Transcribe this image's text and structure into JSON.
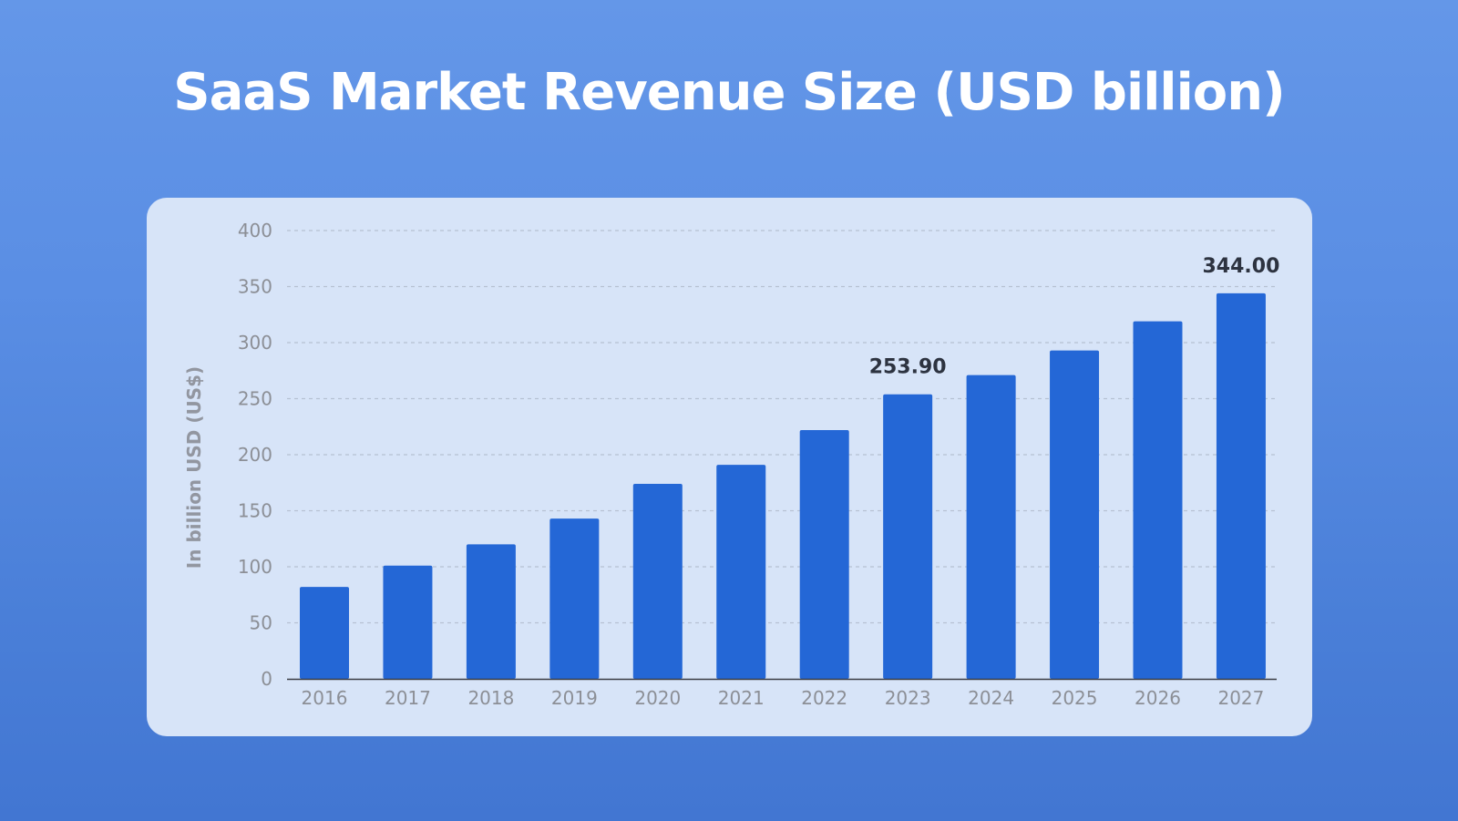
{
  "page": {
    "title": "SaaS Market Revenue Size (USD billion)"
  },
  "colors": {
    "bar": "#2467d6",
    "grid": "#b6c1d2",
    "axis": "#3a3d44",
    "panel": "#d7e4f8"
  },
  "chart_data": {
    "type": "bar",
    "title": "SaaS Market Revenue Size (USD billion)",
    "xlabel": "",
    "ylabel": "In billion USD (US$)",
    "ylim": [
      0,
      400
    ],
    "yticks": [
      0,
      50,
      100,
      150,
      200,
      250,
      300,
      350,
      400
    ],
    "grid": true,
    "categories": [
      "2016",
      "2017",
      "2018",
      "2019",
      "2020",
      "2021",
      "2022",
      "2023",
      "2024",
      "2025",
      "2026",
      "2027"
    ],
    "values": [
      82,
      101,
      120,
      143,
      174,
      191,
      222,
      253.9,
      271,
      293,
      319,
      344
    ],
    "annotations": [
      {
        "category": "2023",
        "text": "253.90"
      },
      {
        "category": "2027",
        "text": "344.00"
      }
    ]
  }
}
